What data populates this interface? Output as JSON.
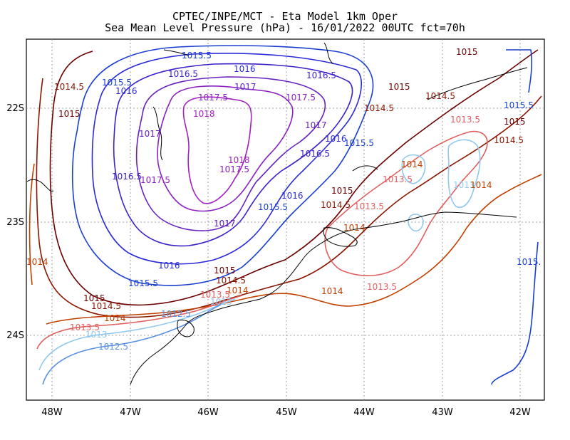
{
  "title": {
    "line1": "CPTEC/INPE/MCT -  Eta Model 1km Oper",
    "line2": "Sea Mean Level Pressure (hPa) - 16/01/2022 00UTC fct=70h"
  },
  "axes": {
    "x_ticks": [
      "48W",
      "47W",
      "46W",
      "45W",
      "44W",
      "43W",
      "42W"
    ],
    "y_ticks": [
      "22S",
      "23S",
      "24S"
    ]
  },
  "contour_labels": [
    {
      "text": "1015.5",
      "color": "#1a3fd0"
    },
    {
      "text": "1016",
      "color": "#2a2ad8"
    },
    {
      "text": "1016.5",
      "color": "#3a22c8"
    },
    {
      "text": "1017",
      "color": "#6622c0"
    },
    {
      "text": "1017.5",
      "color": "#8a22c0"
    },
    {
      "text": "1018",
      "color": "#a020c0"
    },
    {
      "text": "1015",
      "color": "#6b0000"
    },
    {
      "text": "1014.5",
      "color": "#8a1500"
    },
    {
      "text": "1014",
      "color": "#c04000"
    },
    {
      "text": "1013.5",
      "color": "#e06060"
    },
    {
      "text": "1013",
      "color": "#90c8f0"
    },
    {
      "text": "1012.5",
      "color": "#5a90e0"
    },
    {
      "text": "1015.",
      "color": "#1a3fd0"
    }
  ],
  "colors": {
    "p1012_5": "#5a90e0",
    "p1013": "#90c8f0",
    "p1013_5": "#e06060",
    "p1014": "#c04000",
    "p1014_5": "#8a1500",
    "p1015": "#6b0000",
    "p1015_5": "#1a3fd0",
    "p1016": "#2a2ad8",
    "p1016_5": "#3a22c8",
    "p1017": "#6622c0",
    "p1017_5": "#8a22c0",
    "p1018": "#a020c0"
  }
}
